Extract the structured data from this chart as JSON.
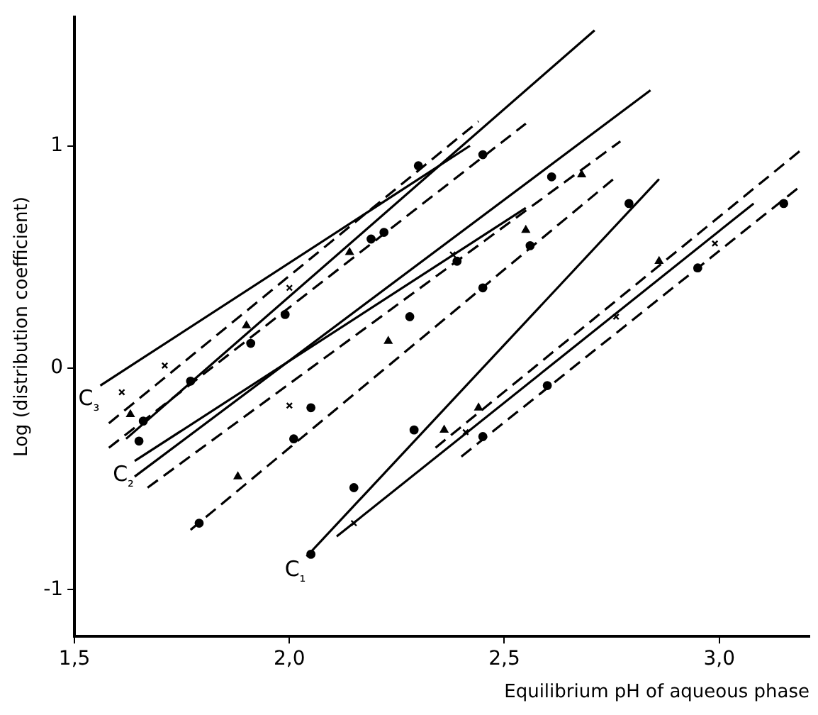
{
  "chart_data": {
    "type": "scatter",
    "xlabel": "Equilibrium pH of aqueous phase",
    "ylabel": "Log (distribution coefficient)",
    "xlim": [
      1.5,
      3.21
    ],
    "ylim": [
      -1.21,
      1.58
    ],
    "xticks": [
      {
        "value": 1.5,
        "label": "1,5"
      },
      {
        "value": 2.0,
        "label": "2,0"
      },
      {
        "value": 2.5,
        "label": "2,5"
      },
      {
        "value": 3.0,
        "label": "3,0"
      }
    ],
    "yticks": [
      -1,
      0,
      1
    ],
    "grid": false,
    "legend": false,
    "series": [
      {
        "marker": "cross",
        "color": "#000000",
        "x": [
          2.15,
          2.41,
          2.76,
          2.99
        ],
        "values": [
          -0.7,
          -0.29,
          0.23,
          0.56
        ]
      },
      {
        "marker": "triangle",
        "color": "#000000",
        "x": [
          2.36,
          2.44,
          2.86
        ],
        "values": [
          -0.28,
          -0.18,
          0.48
        ]
      },
      {
        "marker": "circle",
        "color": "#000000",
        "x": [
          2.05,
          2.15,
          2.29,
          2.79
        ],
        "values": [
          -0.84,
          -0.54,
          -0.28,
          0.74
        ]
      },
      {
        "marker": "circle",
        "color": "#000000",
        "x": [
          2.45,
          2.6,
          2.95,
          3.15
        ],
        "values": [
          -0.31,
          -0.08,
          0.45,
          0.74
        ]
      },
      {
        "marker": "cross",
        "color": "#000000",
        "x": [
          2.0,
          2.38
        ],
        "values": [
          -0.17,
          0.51
        ]
      },
      {
        "marker": "triangle",
        "color": "#000000",
        "x": [
          1.88,
          2.23,
          2.55,
          2.68
        ],
        "values": [
          -0.49,
          0.12,
          0.62,
          0.87
        ]
      },
      {
        "marker": "circle",
        "color": "#000000",
        "x": [
          2.05,
          2.39
        ],
        "values": [
          -0.18,
          0.48
        ]
      },
      {
        "marker": "circle",
        "color": "#000000",
        "x": [
          1.79,
          2.01,
          2.28,
          2.45,
          2.56,
          2.61
        ],
        "values": [
          -0.7,
          -0.32,
          0.23,
          0.36,
          0.55,
          0.86
        ]
      },
      {
        "marker": "cross",
        "color": "#000000",
        "x": [
          1.61,
          1.71,
          2.0
        ],
        "values": [
          -0.11,
          0.01,
          0.36
        ]
      },
      {
        "marker": "triangle",
        "color": "#000000",
        "x": [
          1.63,
          1.9,
          2.14
        ],
        "values": [
          -0.21,
          0.19,
          0.52
        ]
      },
      {
        "marker": "circle",
        "color": "#000000",
        "x": [
          1.66,
          1.91,
          2.22,
          2.45
        ],
        "values": [
          -0.24,
          0.11,
          0.61,
          0.96
        ]
      },
      {
        "marker": "circle",
        "color": "#000000",
        "x": [
          1.65,
          1.77,
          1.99,
          2.19,
          2.3
        ],
        "values": [
          -0.33,
          -0.06,
          0.24,
          0.58,
          0.91
        ]
      },
      {
        "type": "line",
        "name": "C₁",
        "line_style": "solid",
        "color": "#000000",
        "x": [
          2.04,
          2.86
        ],
        "values": [
          -0.85,
          0.85
        ]
      },
      {
        "type": "line",
        "line_style": "solid",
        "color": "#000000",
        "x": [
          2.11,
          3.08
        ],
        "values": [
          -0.76,
          0.74
        ]
      },
      {
        "type": "line",
        "line_style": "dashed",
        "color": "#000000",
        "x": [
          2.34,
          3.19
        ],
        "values": [
          -0.36,
          0.98
        ]
      },
      {
        "type": "line",
        "line_style": "dashed",
        "color": "#000000",
        "x": [
          2.4,
          3.19
        ],
        "values": [
          -0.4,
          0.82
        ]
      },
      {
        "type": "line",
        "line_style": "solid",
        "color": "#000000",
        "x": [
          1.64,
          2.84
        ],
        "values": [
          -0.49,
          1.25
        ]
      },
      {
        "type": "line",
        "name": "C₂",
        "line_style": "solid",
        "color": "#000000",
        "x": [
          1.64,
          2.55
        ],
        "values": [
          -0.42,
          0.72
        ]
      },
      {
        "type": "line",
        "line_style": "dashed",
        "color": "#000000",
        "x": [
          1.67,
          2.77
        ],
        "values": [
          -0.54,
          1.02
        ]
      },
      {
        "type": "line",
        "line_style": "dashed",
        "color": "#000000",
        "x": [
          1.77,
          2.76
        ],
        "values": [
          -0.73,
          0.86
        ]
      },
      {
        "type": "line",
        "name": "C₃",
        "line_style": "solid",
        "color": "#000000",
        "x": [
          1.56,
          2.42
        ],
        "values": [
          -0.08,
          1.0
        ]
      },
      {
        "type": "line",
        "line_style": "dashed",
        "color": "#000000",
        "x": [
          1.58,
          2.44
        ],
        "values": [
          -0.25,
          1.11
        ]
      },
      {
        "type": "line",
        "line_style": "solid",
        "color": "#000000",
        "x": [
          1.62,
          2.71
        ],
        "values": [
          -0.32,
          1.52
        ]
      },
      {
        "type": "line",
        "line_style": "dashed",
        "color": "#000000",
        "x": [
          1.58,
          2.55
        ],
        "values": [
          -0.36,
          1.1
        ]
      }
    ]
  }
}
